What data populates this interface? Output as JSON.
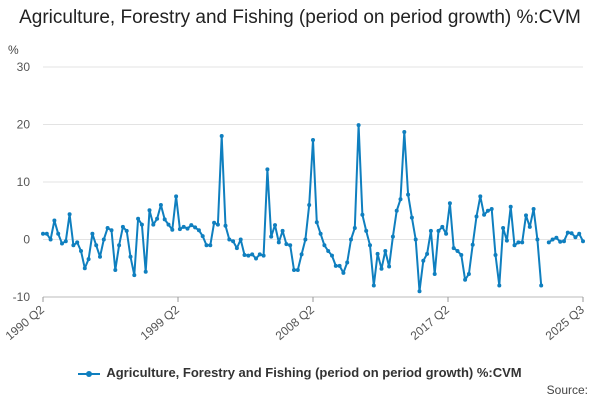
{
  "chart_data": {
    "type": "line",
    "title": "Agriculture, Forestry and Fishing (period on period growth) %:CVM",
    "ylabel": "%",
    "ylim": [
      -10,
      30
    ],
    "yticks": [
      -10,
      0,
      10,
      20,
      30
    ],
    "xtick_labels": [
      "1990 Q2",
      "1999 Q2",
      "2008 Q2",
      "2017 Q2",
      "2025 Q3"
    ],
    "grid": true,
    "legend_position": "bottom",
    "series": [
      {
        "name": "Agriculture, Forestry and Fishing (period on period growth) %:CVM",
        "color": "#0f7fbf",
        "x_start": "1990 Q2",
        "values": [
          1.0,
          1.0,
          0.0,
          3.3,
          1.0,
          -0.7,
          -0.3,
          4.4,
          -1.0,
          -0.5,
          -2.0,
          -5.0,
          -3.4,
          1.0,
          -1.0,
          -3.0,
          0.0,
          2.0,
          1.6,
          -5.3,
          -1.0,
          2.2,
          1.5,
          -3.0,
          -6.2,
          3.6,
          2.6,
          -5.6,
          5.1,
          2.6,
          3.6,
          6.0,
          3.5,
          2.6,
          1.7,
          7.5,
          1.8,
          2.2,
          1.9,
          2.5,
          2.1,
          1.6,
          0.6,
          -1.0,
          -1.0,
          2.9,
          2.6,
          18.0,
          2.4,
          0.0,
          -0.3,
          -1.5,
          0.0,
          -2.7,
          -2.8,
          -2.6,
          -3.3,
          -2.6,
          -2.8,
          12.2,
          0.5,
          2.5,
          -0.5,
          1.5,
          -0.8,
          -1.0,
          -5.3,
          -5.3,
          -2.6,
          0.0,
          6.0,
          17.3,
          3.0,
          1.0,
          -1.0,
          -2.0,
          -2.8,
          -4.6,
          -4.6,
          -5.8,
          -4.0,
          0.0,
          2.0,
          19.9,
          4.3,
          1.5,
          -1.0,
          -8.0,
          -2.5,
          -5.1,
          -2.0,
          -4.7,
          0.5,
          5.0,
          7.0,
          18.7,
          7.8,
          3.8,
          0.0,
          -9.0,
          -3.7,
          -2.5,
          1.5,
          -6.0,
          1.5,
          2.2,
          1.0,
          6.3,
          -1.5,
          -2.0,
          -2.7,
          -7.0,
          -6.0,
          -0.9,
          4.0,
          7.5,
          4.3,
          5.0,
          5.3,
          -2.7,
          -8.0,
          2.0,
          -0.2,
          5.7,
          -1.0,
          -0.5,
          -0.5,
          4.2,
          2.2,
          5.3,
          0.0,
          -8.0,
          null,
          -0.5,
          0.0,
          0.3,
          -0.4,
          -0.3,
          1.2,
          1.1,
          0.4,
          1.0,
          -0.3
        ]
      }
    ]
  },
  "source_label": "Source:"
}
